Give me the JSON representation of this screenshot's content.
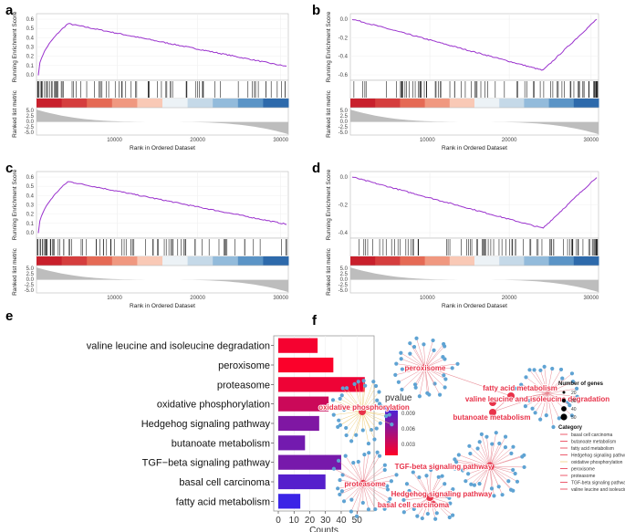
{
  "panels": {
    "a": "a",
    "b": "b",
    "c": "c",
    "d": "d",
    "e": "e",
    "f": "f"
  },
  "gsea": {
    "y_label": "Running Enrichment Score",
    "metric_label": "Ranked list metric",
    "x_label": "Rank in Ordered Dataset",
    "x_ticks": [
      "10000",
      "20000",
      "30000"
    ],
    "plots": [
      {
        "id": "a",
        "direction": "up",
        "es_ticks": [
          "0.6",
          "0.5",
          "0.4",
          "0.3",
          "0.2",
          "0.1",
          "0.0"
        ],
        "metric_ticks": [
          "5.0",
          "2.5",
          "0.0",
          "-2.5",
          "-5.0"
        ]
      },
      {
        "id": "b",
        "direction": "down",
        "es_ticks": [
          "0.0",
          "-0.2",
          "-0.4",
          "-0.6"
        ],
        "metric_ticks": [
          "5.0",
          "2.5",
          "0.0",
          "-2.5",
          "-5.0"
        ]
      },
      {
        "id": "c",
        "direction": "up",
        "es_ticks": [
          "0.6",
          "0.5",
          "0.4",
          "0.3",
          "0.2",
          "0.1",
          "0.0"
        ],
        "metric_ticks": [
          "5.0",
          "2.5",
          "0.0",
          "-2.5",
          "-5.0"
        ]
      },
      {
        "id": "d",
        "direction": "down",
        "es_ticks": [
          "0.0",
          "-0.2",
          "-0.4"
        ],
        "metric_ticks": [
          "5.0",
          "2.5",
          "0.0",
          "-2.5",
          "-5.0"
        ]
      }
    ]
  },
  "chart_data": [
    {
      "type": "bar",
      "orientation": "horizontal",
      "categories": [
        "valine leucine and isoleucine degradation",
        "peroxisome",
        "proteasome",
        "oxidative phosphorylation",
        "Hedgehog signaling pathway",
        "butanoate metabolism",
        "TGF−beta signaling pathway",
        "basal cell carcinoma",
        "fatty acid metabolism"
      ],
      "values": [
        25,
        35,
        55,
        32,
        26,
        17,
        40,
        30,
        14
      ],
      "xlabel": "Counts",
      "x_ticks": [
        "0",
        "10",
        "20",
        "30",
        "40",
        "50"
      ],
      "xlim": [
        0,
        58
      ],
      "legend": {
        "title": "pvalue",
        "ticks": [
          "0.009",
          "0.006",
          "0.003"
        ],
        "low_color": "#ff0026",
        "high_color": "#3b24e6"
      },
      "pvalues": [
        0.0015,
        0.0012,
        0.0018,
        0.0035,
        0.0072,
        0.0078,
        0.0076,
        0.0092,
        0.0105
      ]
    }
  ],
  "network": {
    "hubs": [
      {
        "label": "peroxisome"
      },
      {
        "label": "oxidative phosphorylation"
      },
      {
        "label": "fatty acid metabolism"
      },
      {
        "label": "valine leucine and isoleucine degradation"
      },
      {
        "label": "butanoate metabolism"
      },
      {
        "label": "proteasome"
      },
      {
        "label": "TGF-beta signaling pathway"
      },
      {
        "label": "Hedgehog signaling pathway"
      },
      {
        "label": "basal cell carcinoma"
      }
    ],
    "legend_size": {
      "title": "Number of genes",
      "values": [
        "20",
        "30",
        "40",
        "50"
      ]
    },
    "legend_category": {
      "title": "Category",
      "items": [
        {
          "label": "basal cell carcinoma",
          "color": "#e8334a"
        },
        {
          "label": "butanoate metabolism",
          "color": "#e8334a"
        },
        {
          "label": "fatty acid metabolism",
          "color": "#e8334a"
        },
        {
          "label": "Hedgehog signaling pathway",
          "color": "#e8334a"
        },
        {
          "label": "oxidative phosphorylation",
          "color": "#f0d080"
        },
        {
          "label": "peroxisome",
          "color": "#e8334a"
        },
        {
          "label": "proteasome",
          "color": "#e8334a"
        },
        {
          "label": "TGF-beta signaling pathway",
          "color": "#e8334a"
        },
        {
          "label": "valine leucine and isoleucine degradation",
          "color": "#e8334a"
        }
      ]
    }
  }
}
